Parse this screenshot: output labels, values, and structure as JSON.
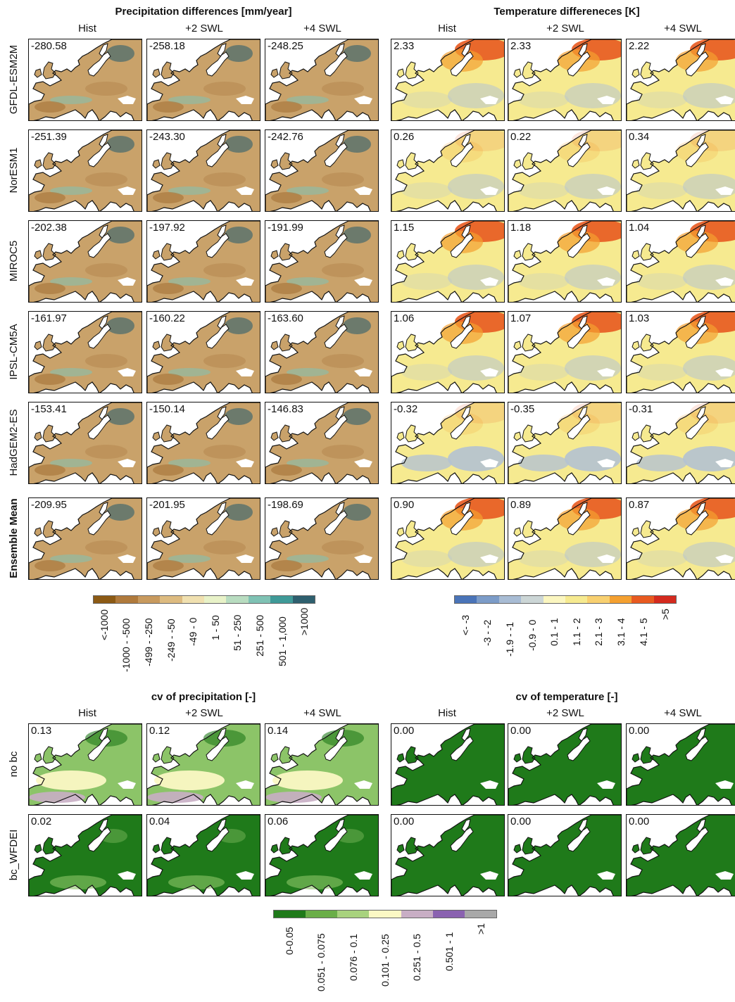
{
  "top": {
    "precip_title": "Precipitation differences [mm/year]",
    "temp_title": "Temperature differeneces [K]",
    "col_headers": [
      "Hist",
      "+2 SWL",
      "+4 SWL"
    ],
    "rows": [
      {
        "label": "GFDL-ESM2M",
        "precip": [
          "-280.58",
          "-258.18",
          "-248.25"
        ],
        "temp": [
          "2.33",
          "2.33",
          "2.22"
        ]
      },
      {
        "label": "NorESM1",
        "precip": [
          "-251.39",
          "-243.30",
          "-242.76"
        ],
        "temp": [
          "0.26",
          "0.22",
          "0.34"
        ]
      },
      {
        "label": "MIROC5",
        "precip": [
          "-202.38",
          "-197.92",
          "-191.99"
        ],
        "temp": [
          "1.15",
          "1.18",
          "1.04"
        ]
      },
      {
        "label": "IPSL-CM5A",
        "precip": [
          "-161.97",
          "-160.22",
          "-163.60"
        ],
        "temp": [
          "1.06",
          "1.07",
          "1.03"
        ]
      },
      {
        "label": "HadGEM2-ES",
        "precip": [
          "-153.41",
          "-150.14",
          "-146.83"
        ],
        "temp": [
          "-0.32",
          "-0.35",
          "-0.31"
        ]
      },
      {
        "label": "Ensemble Mean",
        "precip": [
          "-209.95",
          "-201.95",
          "-198.69"
        ],
        "temp": [
          "0.90",
          "0.89",
          "0.87"
        ]
      }
    ],
    "precip_legend": {
      "labels": [
        "<-1000",
        "-1000 - -500",
        "-499 - -250",
        "-249 - -50",
        "-49 - 0",
        "1 - 50",
        "51 - 250",
        "251 - 500",
        "501 - 1,000",
        ">1000"
      ],
      "colors": [
        "#8c5a14",
        "#b07a3c",
        "#c89a5e",
        "#ddbb80",
        "#f0e0b0",
        "#e8f2c8",
        "#b8dcc0",
        "#7fc2b4",
        "#3f9a98",
        "#2e5f6e"
      ]
    },
    "temp_legend": {
      "labels": [
        "<- -3",
        "-3 - -2",
        "-1.9 - -1",
        "-0.9 - 0",
        "0.1 - 1",
        "1.1 - 2",
        "2.1 - 3",
        "3.1 - 4",
        "4.1 - 5",
        ">5"
      ],
      "colors": [
        "#4a74b8",
        "#7c9cc8",
        "#a8bcd4",
        "#ccd6d6",
        "#fbf6c0",
        "#f6ea90",
        "#f8d070",
        "#f4a030",
        "#e85a20",
        "#d42a1e"
      ]
    }
  },
  "bottom": {
    "precip_title": "cv of precipitation [-]",
    "temp_title": "cv of temperature [-]",
    "col_headers": [
      "Hist",
      "+2 SWL",
      "+4 SWL"
    ],
    "rows": [
      {
        "label": "no bc",
        "precip": [
          "0.13",
          "0.12",
          "0.14"
        ],
        "temp": [
          "0.00",
          "0.00",
          "0.00"
        ]
      },
      {
        "label": "bc_WFDEI",
        "precip": [
          "0.02",
          "0.04",
          "0.06"
        ],
        "temp": [
          "0.00",
          "0.00",
          "0.00"
        ]
      }
    ],
    "legend": {
      "labels": [
        "0-0.05",
        "0.051 - 0.075",
        "0.076 - 0.1",
        "0.101 - 0.25",
        "0.251 - 0.5",
        "0.501 - 1",
        ">1"
      ],
      "colors": [
        "#1f7a1a",
        "#6aae48",
        "#a8d27e",
        "#fbf8c4",
        "#c8aec4",
        "#8a62b0",
        "#a8a8a8"
      ]
    }
  },
  "map_palette": {
    "precip_land": "#c9a26a",
    "precip_dark": "#a9793e",
    "precip_blue": "#7fc2b4",
    "temp_hot": "#e85a20",
    "temp_warm": "#f4a030",
    "temp_mild": "#f6ea90",
    "temp_cool": "#b4c2d2",
    "cv_green": "#1f7a1a",
    "cv_light": "#8cc468",
    "cv_yellow": "#fbf8c4",
    "cv_purple": "#c8aec4",
    "sea": "#ffffff",
    "coast": "#111111"
  }
}
